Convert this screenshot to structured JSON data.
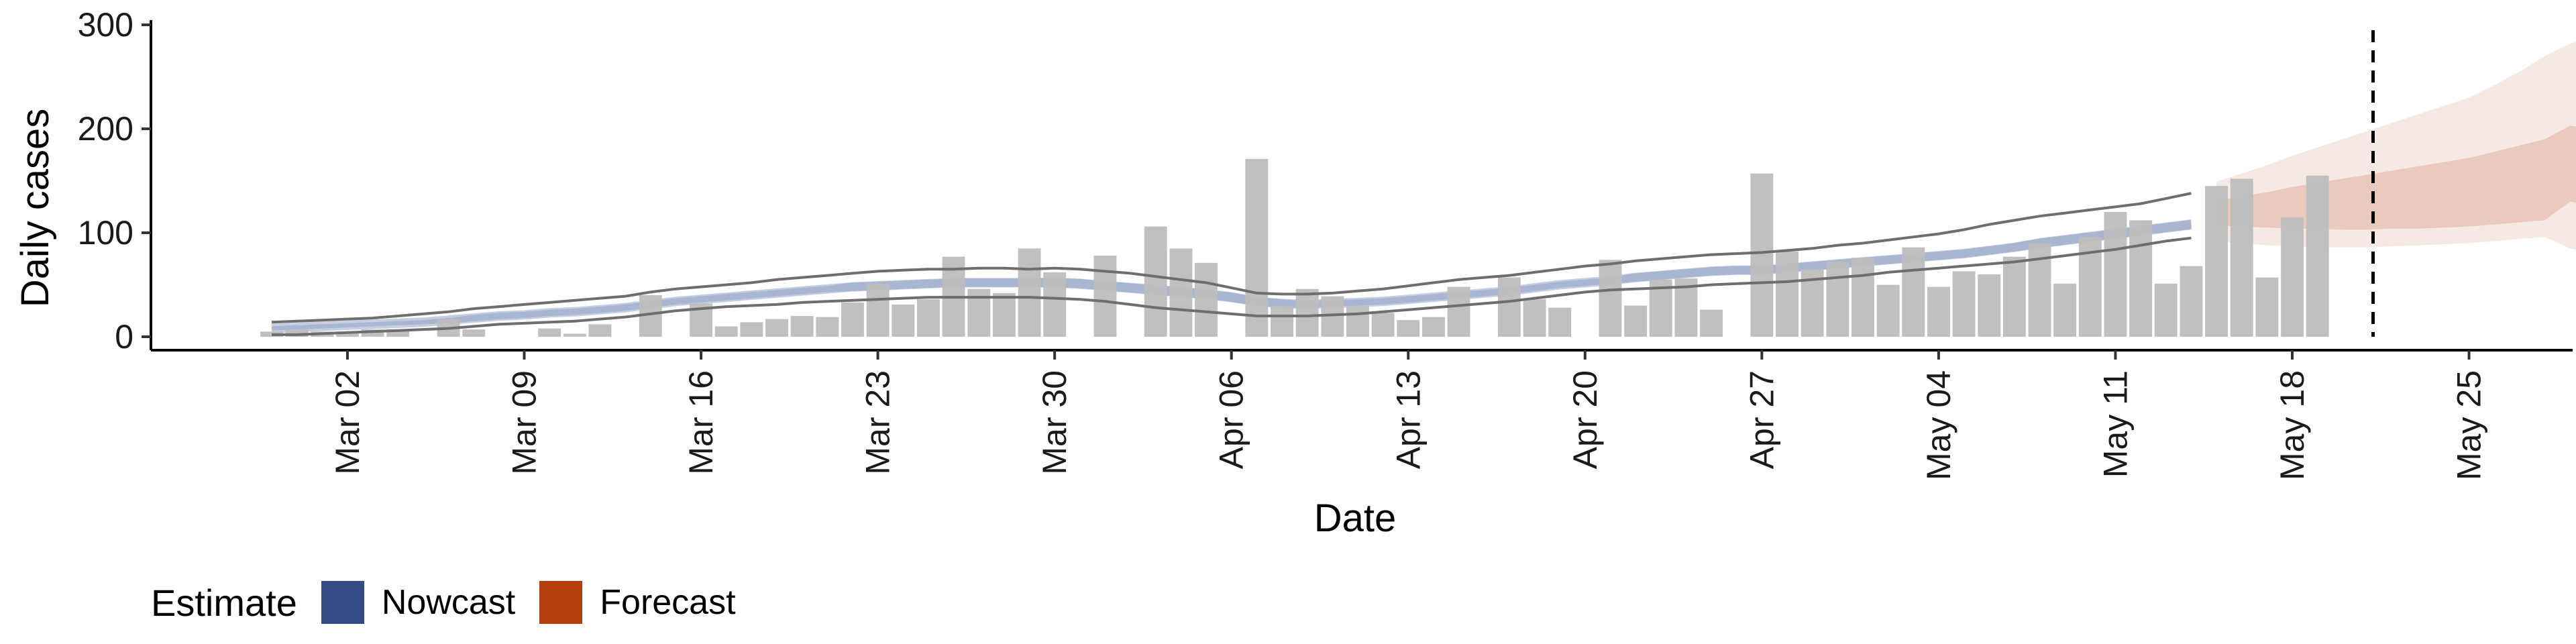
{
  "chart_data": {
    "type": "bar",
    "xlabel": "Date",
    "ylabel": "Daily cases",
    "ylim": [
      0,
      300
    ],
    "yticks": [
      0,
      100,
      200,
      300
    ],
    "xticks": [
      "Mar 02",
      "Mar 09",
      "Mar 16",
      "Mar 23",
      "Mar 30",
      "Apr 06",
      "Apr 13",
      "Apr 20",
      "Apr 27",
      "May 04",
      "May 11",
      "May 18",
      "May 25"
    ],
    "date_start": "Feb 28",
    "forecast_date": "May 22",
    "bars": {
      "name": "Daily cases",
      "color": "#bdbdbd",
      "values": [
        5,
        7,
        5,
        5,
        7,
        7,
        null,
        17,
        7,
        null,
        null,
        8,
        3,
        12,
        null,
        40,
        null,
        32,
        10,
        14,
        17,
        20,
        19,
        33,
        51,
        31,
        36,
        77,
        46,
        42,
        85,
        62,
        null,
        78,
        null,
        106,
        85,
        71,
        null,
        171,
        30,
        46,
        39,
        30,
        23,
        16,
        19,
        48,
        null,
        57,
        36,
        28,
        null,
        74,
        30,
        55,
        56,
        26,
        null,
        157,
        82,
        65,
        72,
        76,
        50,
        86,
        48,
        63,
        60,
        77,
        90,
        51,
        96,
        120,
        112,
        51,
        68,
        145,
        152,
        57,
        115,
        155
      ]
    },
    "nowcast": {
      "name": "Nowcast",
      "color": "#2f4d8e",
      "median": [
        8,
        9,
        10,
        11,
        12,
        13,
        14,
        16,
        18,
        20,
        21,
        23,
        24,
        26,
        28,
        31,
        34,
        36,
        38,
        40,
        42,
        44,
        46,
        48,
        49,
        50,
        51,
        52,
        52,
        52,
        52,
        52,
        51,
        49,
        47,
        45,
        43,
        41,
        38,
        34,
        32,
        31,
        32,
        33,
        34,
        36,
        38,
        40,
        42,
        44,
        47,
        50,
        52,
        54,
        57,
        59,
        61,
        63,
        64,
        64,
        66,
        68,
        70,
        72,
        74,
        76,
        78,
        80,
        83,
        86,
        90,
        93,
        96,
        99,
        102,
        105,
        108
      ],
      "inner_lo": [
        6,
        7,
        8,
        9,
        10,
        11,
        12,
        13,
        15,
        17,
        18,
        20,
        21,
        23,
        25,
        28,
        31,
        33,
        35,
        37,
        39,
        41,
        43,
        44,
        45,
        46,
        47,
        48,
        48,
        48,
        48,
        47,
        46,
        44,
        42,
        40,
        38,
        36,
        33,
        30,
        28,
        28,
        29,
        30,
        31,
        33,
        35,
        37,
        39,
        41,
        44,
        47,
        49,
        51,
        53,
        55,
        57,
        59,
        60,
        60,
        62,
        64,
        66,
        68,
        70,
        72,
        74,
        76,
        79,
        82,
        85,
        88,
        91,
        94,
        97,
        100,
        103
      ],
      "inner_hi": [
        10,
        11,
        12,
        13,
        14,
        15,
        16,
        18,
        21,
        23,
        24,
        26,
        27,
        29,
        31,
        34,
        37,
        39,
        41,
        43,
        45,
        47,
        49,
        52,
        53,
        54,
        55,
        56,
        56,
        56,
        56,
        57,
        56,
        54,
        52,
        50,
        48,
        46,
        43,
        38,
        36,
        34,
        35,
        36,
        37,
        39,
        41,
        43,
        45,
        47,
        50,
        53,
        55,
        57,
        61,
        63,
        65,
        67,
        68,
        68,
        70,
        72,
        74,
        76,
        78,
        80,
        82,
        84,
        87,
        90,
        95,
        98,
        101,
        104,
        107,
        110,
        113
      ],
      "outer_lo": [
        2,
        2,
        3,
        4,
        5,
        6,
        7,
        8,
        10,
        12,
        13,
        14,
        15,
        17,
        19,
        22,
        25,
        27,
        29,
        30,
        31,
        33,
        34,
        35,
        36,
        37,
        38,
        38,
        38,
        38,
        38,
        37,
        36,
        34,
        31,
        28,
        26,
        24,
        22,
        20,
        20,
        20,
        21,
        22,
        24,
        26,
        28,
        30,
        32,
        34,
        37,
        40,
        43,
        45,
        46,
        47,
        48,
        50,
        51,
        52,
        53,
        55,
        57,
        59,
        62,
        64,
        66,
        68,
        70,
        72,
        75,
        78,
        81,
        84,
        88,
        92,
        95
      ],
      "outer_hi": [
        14,
        15,
        16,
        17,
        18,
        20,
        22,
        24,
        27,
        29,
        31,
        33,
        35,
        37,
        39,
        43,
        46,
        48,
        50,
        52,
        55,
        57,
        59,
        61,
        63,
        64,
        65,
        65,
        66,
        66,
        65,
        66,
        65,
        63,
        61,
        58,
        55,
        52,
        47,
        42,
        41,
        41,
        42,
        44,
        46,
        49,
        52,
        55,
        57,
        59,
        62,
        65,
        68,
        70,
        73,
        75,
        77,
        79,
        80,
        81,
        83,
        85,
        88,
        90,
        93,
        96,
        99,
        103,
        108,
        112,
        116,
        119,
        122,
        125,
        128,
        133,
        138
      ]
    },
    "forecast": {
      "name": "Forecast",
      "color": "#b5400f",
      "median": [
        121,
        123,
        125,
        127,
        129,
        131,
        133,
        135,
        138,
        140,
        142,
        145,
        147,
        150,
        152,
        155
      ],
      "inner_lo": [
        107,
        106,
        105,
        104,
        104,
        103,
        103,
        104,
        104,
        105,
        106,
        108,
        110,
        112,
        130,
        125
      ],
      "inner_hi": [
        131,
        135,
        139,
        144,
        148,
        152,
        156,
        160,
        164,
        168,
        172,
        178,
        184,
        190,
        203,
        200
      ],
      "outer_lo": [
        92,
        90,
        88,
        87,
        86,
        86,
        86,
        87,
        88,
        89,
        90,
        92,
        94,
        96,
        85,
        80
      ],
      "outer_hi": [
        149,
        157,
        165,
        174,
        182,
        190,
        198,
        206,
        214,
        222,
        230,
        242,
        255,
        270,
        282,
        290
      ]
    },
    "grid": false,
    "legend": {
      "position": "bottom-left",
      "title": "Estimate",
      "entries": [
        {
          "label": "Nowcast",
          "color": "#354a85"
        },
        {
          "label": "Forecast",
          "color": "#b5400f"
        }
      ]
    }
  }
}
